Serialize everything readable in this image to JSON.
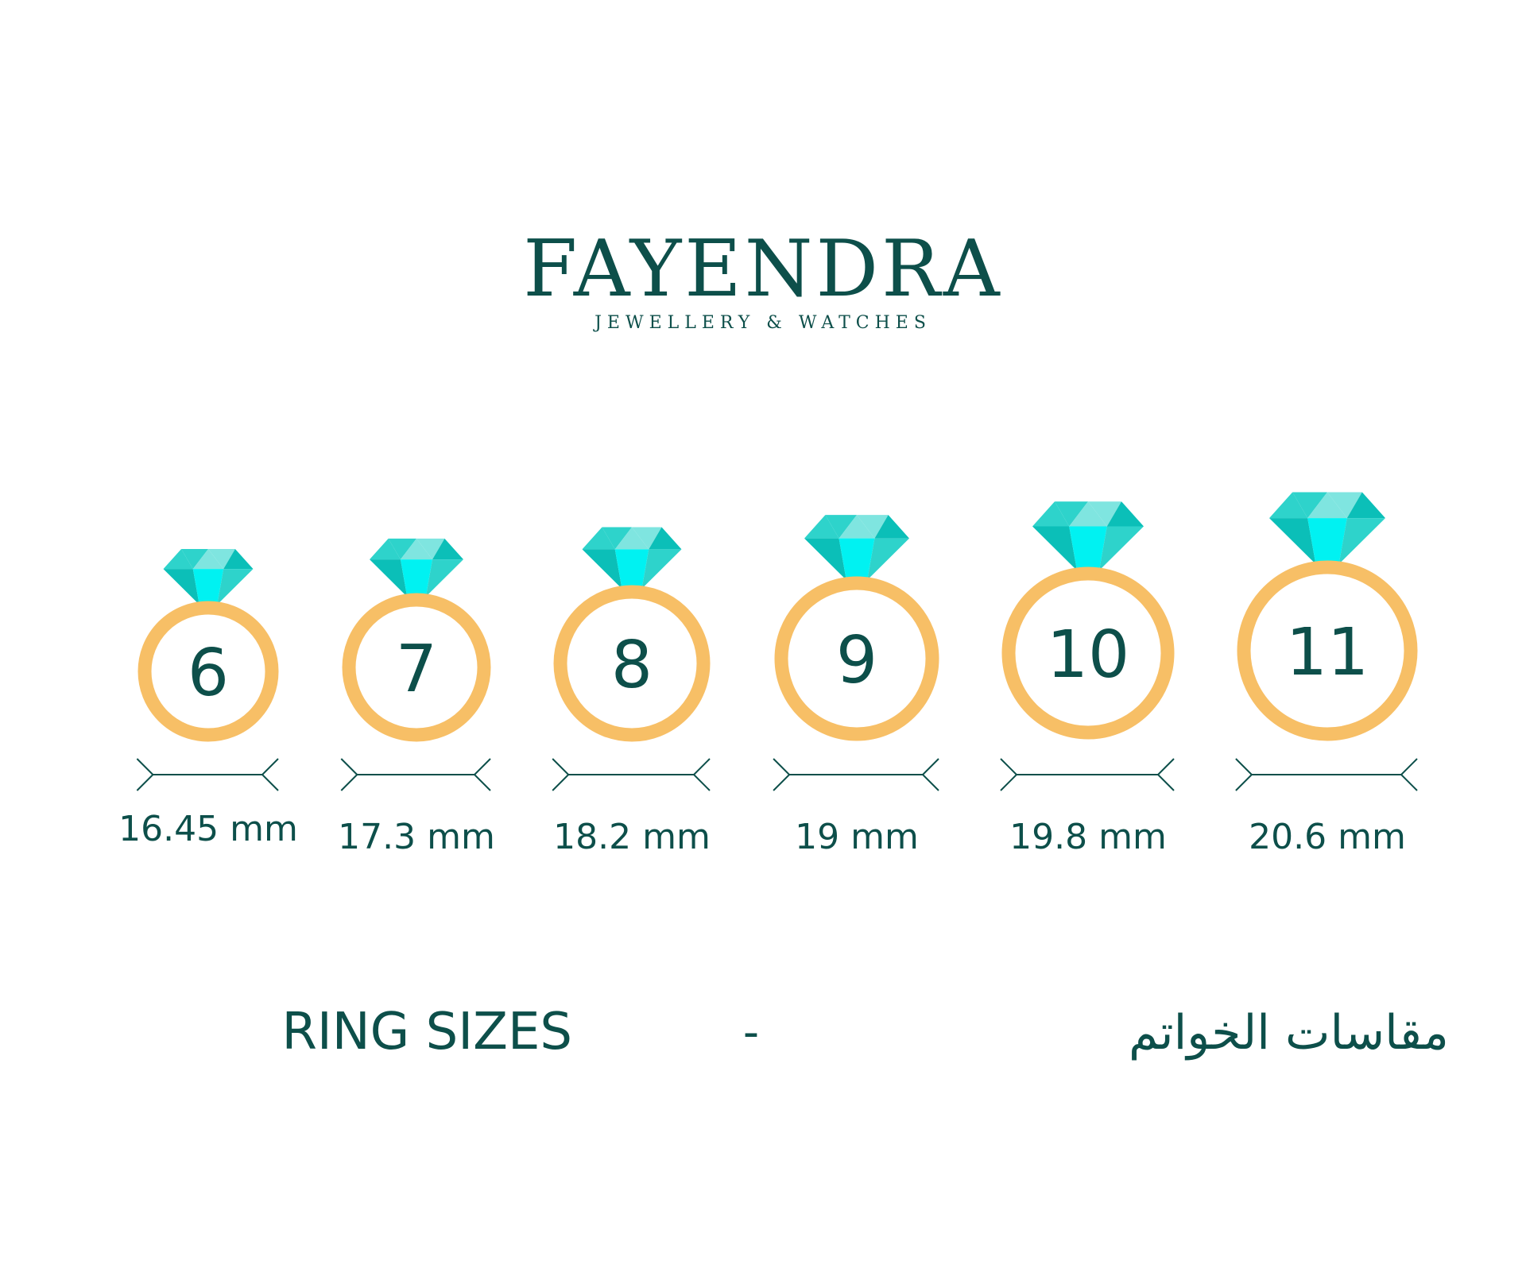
{
  "brand": {
    "name": "FAYENDRA",
    "tagline": "JEWELLERY & WATCHES"
  },
  "colors": {
    "text": "#0d4f4a",
    "ring": "#f7bf66",
    "gem_light": "#7fe5e0",
    "gem_mid": "#2ed3cb",
    "gem_dark": "#0bbfb8",
    "gem_bright": "#00f2f2"
  },
  "rings": [
    {
      "size": "6",
      "diameter": "16.45 mm"
    },
    {
      "size": "7",
      "diameter": "17.3 mm"
    },
    {
      "size": "8",
      "diameter": "18.2 mm"
    },
    {
      "size": "9",
      "diameter": "19 mm"
    },
    {
      "size": "10",
      "diameter": "19.8 mm"
    },
    {
      "size": "11",
      "diameter": "20.6 mm"
    }
  ],
  "footer": {
    "title_en": "RING SIZES",
    "separator": "-",
    "title_ar": "مقاسات الخواتم"
  }
}
